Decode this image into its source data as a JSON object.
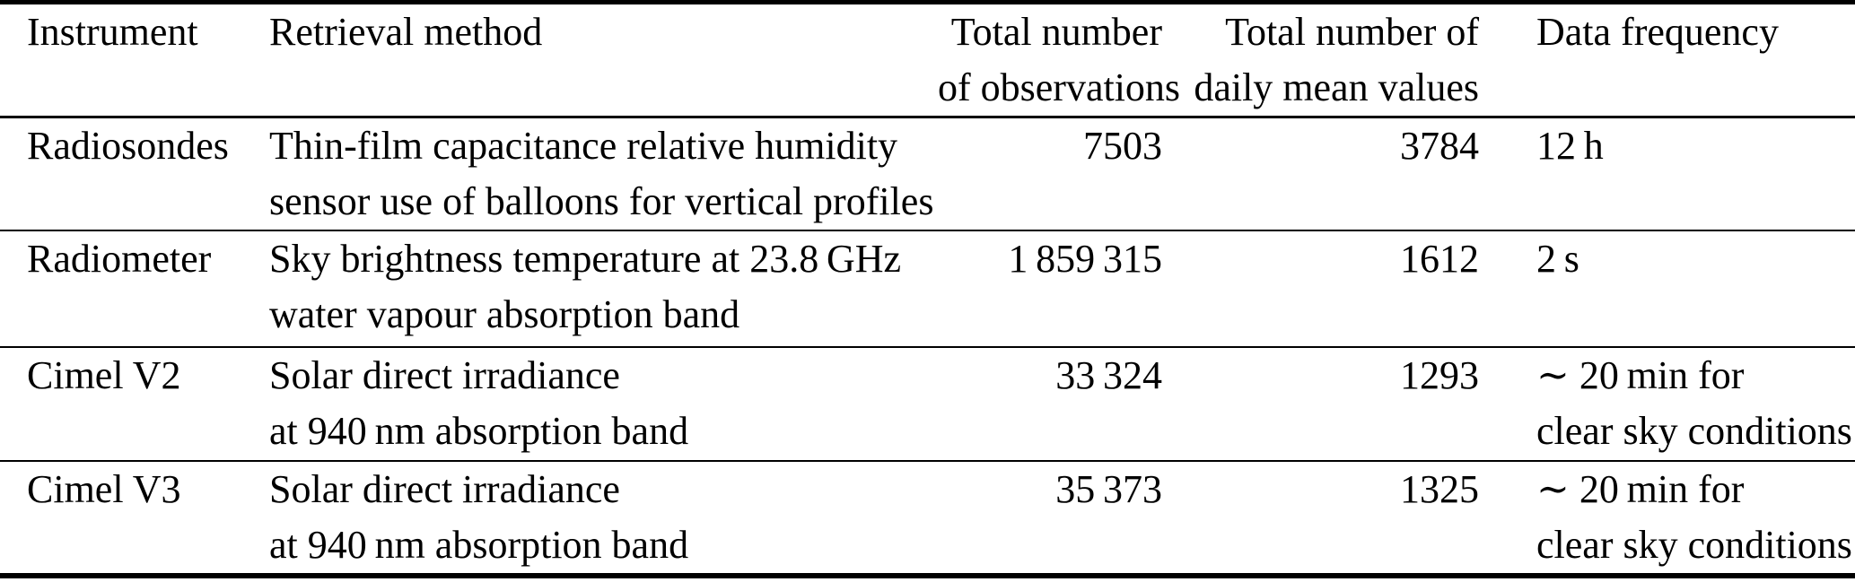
{
  "colors": {
    "text": "#000000",
    "background": "#ffffff",
    "rule": "#000000"
  },
  "table": {
    "headers": [
      {
        "id": "instrument",
        "lines": [
          "Instrument"
        ]
      },
      {
        "id": "retrieval_method",
        "lines": [
          "Retrieval method"
        ]
      },
      {
        "id": "total_observations",
        "lines": [
          "Total number",
          "of observations"
        ]
      },
      {
        "id": "daily_mean_values",
        "lines": [
          "Total number of",
          "daily mean values"
        ]
      },
      {
        "id": "data_frequency",
        "lines": [
          "Data frequency"
        ]
      }
    ],
    "rows": [
      {
        "instrument": "Radiosondes",
        "retrieval_method": [
          "Thin-film capacitance relative humidity",
          "sensor use of balloons for vertical profiles"
        ],
        "total_observations": "7503",
        "daily_mean_values": "3784",
        "data_frequency": [
          "12 h"
        ]
      },
      {
        "instrument": "Radiometer",
        "retrieval_method": [
          "Sky brightness temperature at 23.8 GHz",
          "water vapour absorption band"
        ],
        "total_observations": "1 859 315",
        "daily_mean_values": "1612",
        "data_frequency": [
          "2 s"
        ]
      },
      {
        "instrument": "Cimel V2",
        "retrieval_method": [
          "Solar direct irradiance",
          "at 940 nm absorption band"
        ],
        "total_observations": "33 324",
        "daily_mean_values": "1293",
        "data_frequency": [
          "∼ 20 min for",
          "clear sky conditions"
        ]
      },
      {
        "instrument": "Cimel V3",
        "retrieval_method": [
          "Solar direct irradiance",
          "at 940 nm absorption band"
        ],
        "total_observations": "35 373",
        "daily_mean_values": "1325",
        "data_frequency": [
          "∼ 20 min for",
          "clear sky conditions"
        ]
      }
    ]
  }
}
